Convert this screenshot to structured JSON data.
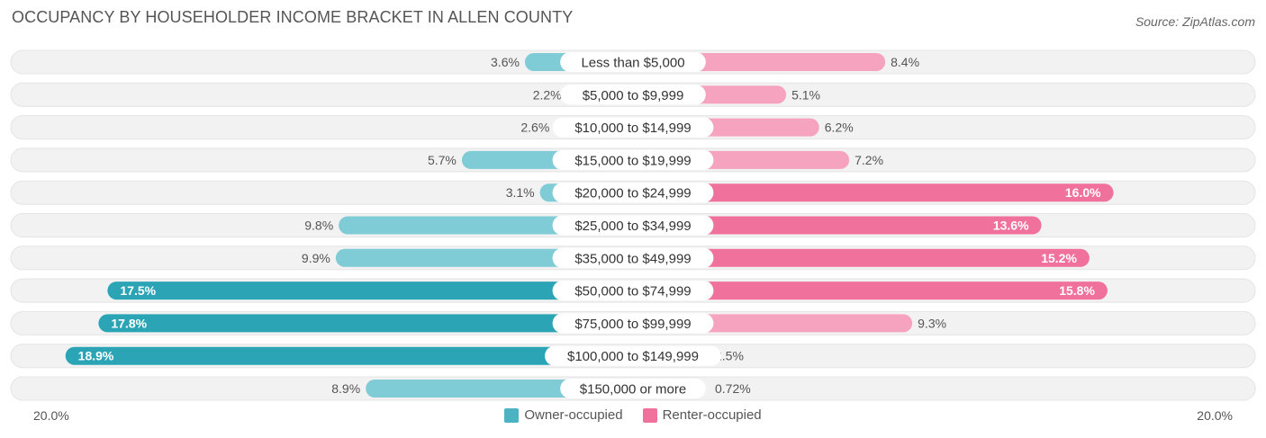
{
  "title": "OCCUPANCY BY HOUSEHOLDER INCOME BRACKET IN ALLEN COUNTY",
  "source": "Source: ZipAtlas.com",
  "axis": {
    "left_label": "20.0%",
    "right_label": "20.0%"
  },
  "colors": {
    "owner_dark": "#2ba5b5",
    "owner_light": "#7fccd6",
    "renter_dark": "#f0719b",
    "renter_light": "#f5a3bf",
    "track": "#f2f2f2"
  },
  "legend": [
    {
      "label": "Owner-occupied",
      "color": "#4bb3c1"
    },
    {
      "label": "Renter-occupied",
      "color": "#f0719b"
    }
  ],
  "chart_data": {
    "type": "bar",
    "orientation": "horizontal-diverging",
    "title": "OCCUPANCY BY HOUSEHOLDER INCOME BRACKET IN ALLEN COUNTY",
    "xlim": [
      -20,
      20
    ],
    "categories": [
      "Less than $5,000",
      "$5,000 to $9,999",
      "$10,000 to $14,999",
      "$15,000 to $19,999",
      "$20,000 to $24,999",
      "$25,000 to $34,999",
      "$35,000 to $49,999",
      "$50,000 to $74,999",
      "$75,000 to $99,999",
      "$100,000 to $149,999",
      "$150,000 or more"
    ],
    "series": [
      {
        "name": "Owner-occupied",
        "values": [
          3.6,
          2.2,
          2.6,
          5.7,
          3.1,
          9.8,
          9.9,
          17.5,
          17.8,
          18.9,
          8.9
        ],
        "labels": [
          "3.6%",
          "2.2%",
          "2.6%",
          "5.7%",
          "3.1%",
          "9.8%",
          "9.9%",
          "17.5%",
          "17.8%",
          "18.9%",
          "8.9%"
        ]
      },
      {
        "name": "Renter-occupied",
        "values": [
          8.4,
          5.1,
          6.2,
          7.2,
          16.0,
          13.6,
          15.2,
          15.8,
          9.3,
          2.5,
          0.72
        ],
        "labels": [
          "8.4%",
          "5.1%",
          "6.2%",
          "7.2%",
          "16.0%",
          "13.6%",
          "15.2%",
          "15.8%",
          "9.3%",
          "2.5%",
          "0.72%"
        ]
      }
    ]
  }
}
